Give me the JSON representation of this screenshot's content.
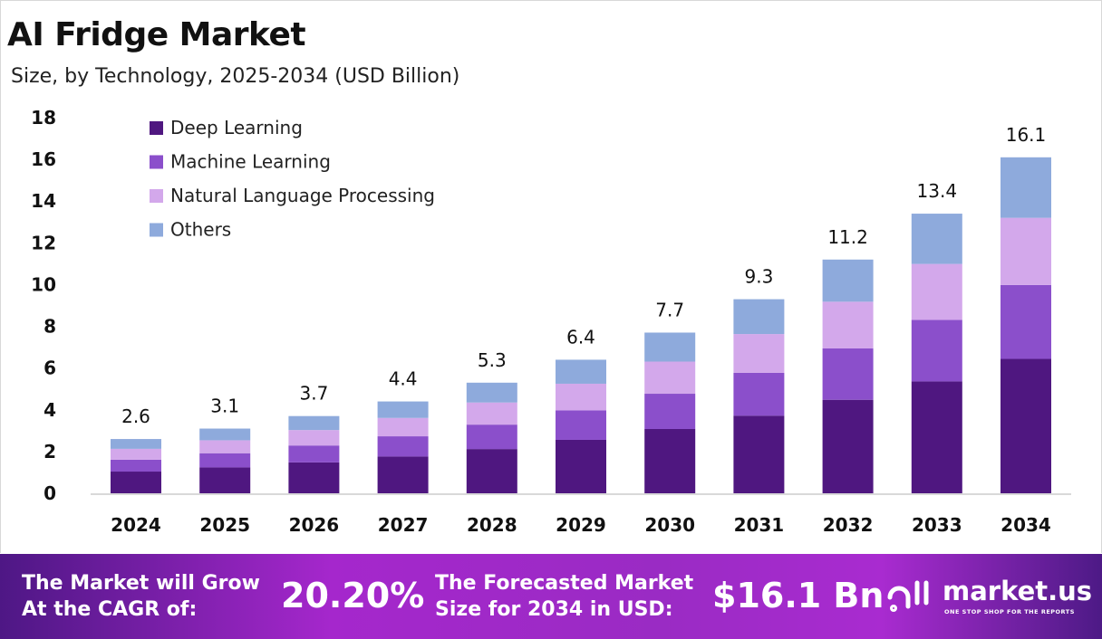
{
  "chart_data": {
    "type": "bar",
    "stacked": true,
    "title": "AI Fridge Market",
    "subtitle": "Size, by Technology, 2025-2034 (USD Billion)",
    "xlabel": "",
    "ylabel": "",
    "ylim": [
      0,
      18
    ],
    "yticks": [
      0,
      2,
      4,
      6,
      8,
      10,
      12,
      14,
      16,
      18
    ],
    "grid": false,
    "legend_position": "top-left",
    "categories": [
      "2024",
      "2025",
      "2026",
      "2027",
      "2028",
      "2029",
      "2030",
      "2031",
      "2032",
      "2033",
      "2034"
    ],
    "totals": [
      "2.6",
      "3.1",
      "3.7",
      "4.4",
      "5.3",
      "6.4",
      "7.7",
      "9.3",
      "11.2",
      "13.4",
      "16.1"
    ],
    "series": [
      {
        "name": "Deep Learning",
        "color": "#4f1780",
        "values": [
          1.04,
          1.24,
          1.48,
          1.76,
          2.12,
          2.56,
          3.08,
          3.72,
          4.48,
          5.36,
          6.44
        ]
      },
      {
        "name": "Machine Learning",
        "color": "#8b4fcb",
        "values": [
          0.57,
          0.68,
          0.81,
          0.97,
          1.17,
          1.41,
          1.69,
          2.05,
          2.46,
          2.95,
          3.54
        ]
      },
      {
        "name": "Natural Language Processing",
        "color": "#d3a8eb",
        "values": [
          0.52,
          0.62,
          0.74,
          0.88,
          1.06,
          1.28,
          1.54,
          1.86,
          2.24,
          2.68,
          3.22
        ]
      },
      {
        "name": "Others",
        "color": "#8eaadc",
        "values": [
          0.47,
          0.56,
          0.67,
          0.79,
          0.95,
          1.15,
          1.39,
          1.67,
          2.02,
          2.41,
          2.9
        ]
      }
    ]
  },
  "footer": {
    "cagr_label_1": "The Market will Grow",
    "cagr_label_2": "At the CAGR of:",
    "cagr_value": "20.20%",
    "forecast_label_1": "The Forecasted Market",
    "forecast_label_2": "Size for 2034 in USD:",
    "forecast_value": "$16.1 Bn",
    "brand": "market.us",
    "tagline": "ONE STOP SHOP FOR THE REPORTS"
  }
}
